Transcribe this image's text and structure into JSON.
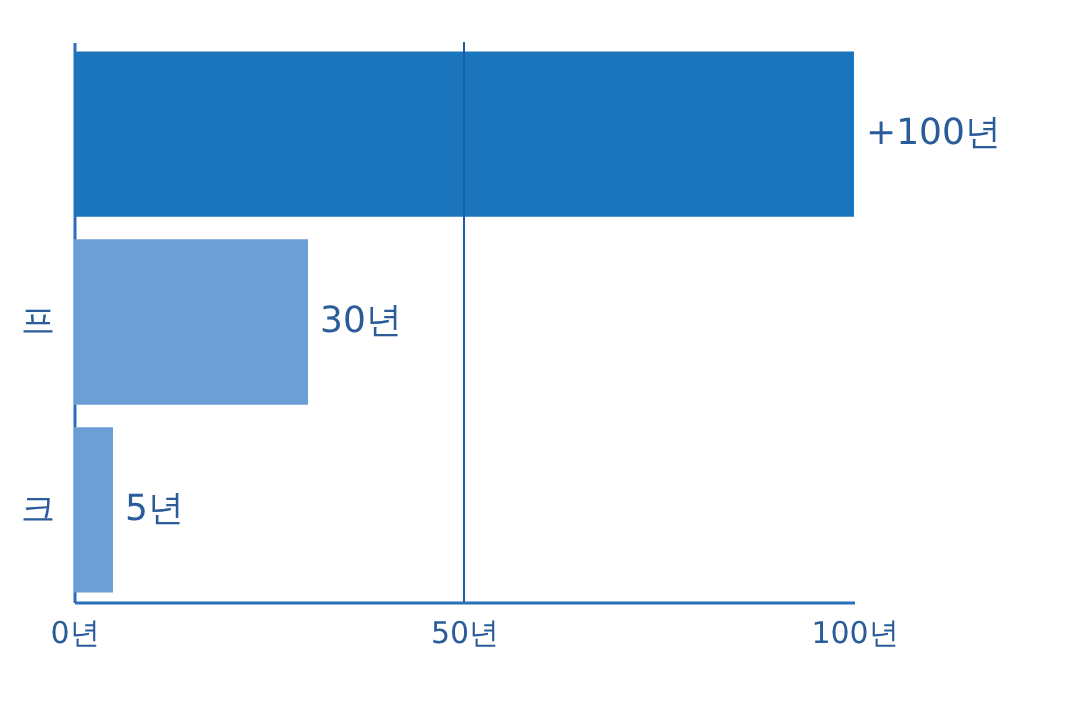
{
  "chart_data": {
    "type": "bar",
    "orientation": "horizontal",
    "categories": [
      null,
      "프",
      "크"
    ],
    "values": [
      100,
      30,
      5
    ],
    "colors": [
      "#1b75bc",
      "#6b9fd6",
      "#6b9fd6"
    ],
    "value_labels": [
      "+100년",
      "30년",
      "5년"
    ],
    "xlim": [
      0,
      100
    ],
    "xticks": [
      {
        "value": 0,
        "label": "0년"
      },
      {
        "value": 50,
        "label": "50년"
      },
      {
        "value": 100,
        "label": "100년"
      }
    ],
    "ref_lines": [
      {
        "axis": "x",
        "value": 50,
        "color": "#1b5fa8"
      }
    ]
  }
}
